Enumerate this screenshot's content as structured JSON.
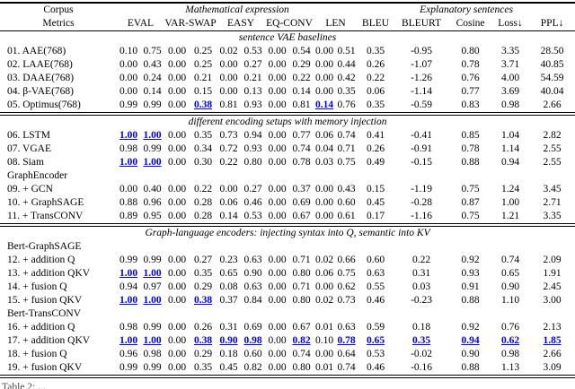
{
  "table": {
    "header": {
      "corpus_label": "Corpus",
      "metrics_label": "Metrics",
      "group_math": "Mathematical expression",
      "group_expl": "Explanatory sentences",
      "math_metrics": [
        "EVAL",
        "VAR-SWAP",
        "EASY",
        "EQ-CONV",
        "LEN"
      ],
      "expl_metrics": [
        "BLEU",
        "BLEURT",
        "Cosine",
        "Loss↓",
        "PPL↓"
      ]
    },
    "highlight_color": "#0000EE",
    "sections": [
      {
        "title": "sentence VAE baselines",
        "rows": [
          {
            "label": "01. AAE(768)",
            "values": [
              "0.10",
              "0.75",
              "0.00",
              "0.25",
              "0.02",
              "0.53",
              "0.00",
              "0.54",
              "0.00",
              "0.51",
              "0.35",
              "-0.95",
              "0.80",
              "3.35",
              "28.50"
            ],
            "highlight": []
          },
          {
            "label": "02. LAAE(768)",
            "values": [
              "0.00",
              "0.43",
              "0.00",
              "0.25",
              "0.00",
              "0.27",
              "0.00",
              "0.29",
              "0.00",
              "0.44",
              "0.26",
              "-1.07",
              "0.78",
              "3.71",
              "40.85"
            ],
            "highlight": []
          },
          {
            "label": "03. DAAE(768)",
            "values": [
              "0.00",
              "0.24",
              "0.00",
              "0.21",
              "0.00",
              "0.21",
              "0.00",
              "0.22",
              "0.00",
              "0.42",
              "0.22",
              "-1.26",
              "0.76",
              "4.00",
              "54.59"
            ],
            "highlight": []
          },
          {
            "label": "04. β-VAE(768)",
            "values": [
              "0.00",
              "0.14",
              "0.00",
              "0.15",
              "0.00",
              "0.13",
              "0.00",
              "0.14",
              "0.00",
              "0.35",
              "0.06",
              "-1.14",
              "0.77",
              "3.69",
              "40.04"
            ],
            "highlight": []
          },
          {
            "label": "05. Optimus(768)",
            "values": [
              "0.99",
              "0.99",
              "0.00",
              "0.38",
              "0.81",
              "0.93",
              "0.00",
              "0.81",
              "0.14",
              "0.76",
              "0.35",
              "-0.59",
              "0.83",
              "0.98",
              "2.66"
            ],
            "highlight": [
              3,
              8
            ]
          }
        ]
      },
      {
        "title": "different encoding setups with memory injection",
        "rows": [
          {
            "label": "06. LSTM",
            "values": [
              "1.00",
              "1.00",
              "0.00",
              "0.35",
              "0.73",
              "0.94",
              "0.00",
              "0.77",
              "0.06",
              "0.74",
              "0.41",
              "-0.41",
              "0.85",
              "1.04",
              "2.82"
            ],
            "highlight": [
              0,
              1
            ]
          },
          {
            "label": "07. VGAE",
            "values": [
              "0.98",
              "0.99",
              "0.00",
              "0.34",
              "0.72",
              "0.93",
              "0.00",
              "0.74",
              "0.04",
              "0.71",
              "0.26",
              "-0.91",
              "0.78",
              "1.14",
              "2.55"
            ],
            "highlight": []
          },
          {
            "label": "08. Siam",
            "values": [
              "1.00",
              "1.00",
              "0.00",
              "0.30",
              "0.22",
              "0.80",
              "0.00",
              "0.78",
              "0.03",
              "0.75",
              "0.49",
              "-0.15",
              "0.88",
              "0.94",
              "2.55"
            ],
            "highlight": [
              0,
              1
            ]
          },
          {
            "subheading": "GraphEncoder"
          },
          {
            "label": "09. + GCN",
            "values": [
              "0.00",
              "0.40",
              "0.00",
              "0.22",
              "0.00",
              "0.27",
              "0.00",
              "0.37",
              "0.00",
              "0.43",
              "0.15",
              "-1.19",
              "0.75",
              "1.24",
              "3.45"
            ],
            "highlight": []
          },
          {
            "label": "10. + GraphSAGE",
            "values": [
              "0.88",
              "0.96",
              "0.00",
              "0.28",
              "0.06",
              "0.46",
              "0.00",
              "0.69",
              "0.00",
              "0.60",
              "0.45",
              "-0.28",
              "0.87",
              "1.00",
              "2.71"
            ],
            "highlight": []
          },
          {
            "label": "11. + TransCONV",
            "values": [
              "0.89",
              "0.95",
              "0.00",
              "0.28",
              "0.14",
              "0.53",
              "0.00",
              "0.67",
              "0.00",
              "0.61",
              "0.17",
              "-1.16",
              "0.75",
              "1.21",
              "3.35"
            ],
            "highlight": []
          }
        ]
      },
      {
        "title": "Graph-language encoders: injecting syntax into Q, semantic into KV",
        "rows": [
          {
            "subheading": "Bert-GraphSAGE"
          },
          {
            "label": "12. + addition Q",
            "values": [
              "0.99",
              "0.99",
              "0.00",
              "0.27",
              "0.23",
              "0.63",
              "0.00",
              "0.71",
              "0.02",
              "0.66",
              "0.60",
              "0.22",
              "0.92",
              "0.74",
              "2.09"
            ],
            "highlight": []
          },
          {
            "label": "13. + addition QKV",
            "values": [
              "1.00",
              "1.00",
              "0.00",
              "0.35",
              "0.65",
              "0.90",
              "0.00",
              "0.80",
              "0.06",
              "0.75",
              "0.63",
              "0.31",
              "0.93",
              "0.65",
              "1.91"
            ],
            "highlight": [
              0,
              1
            ]
          },
          {
            "label": "14. + fusion Q",
            "values": [
              "0.94",
              "0.97",
              "0.00",
              "0.29",
              "0.08",
              "0.63",
              "0.00",
              "0.71",
              "0.00",
              "0.62",
              "0.55",
              "0.03",
              "0.91",
              "0.90",
              "2.45"
            ],
            "highlight": []
          },
          {
            "label": "15. + fusion QKV",
            "values": [
              "1.00",
              "1.00",
              "0.00",
              "0.38",
              "0.37",
              "0.84",
              "0.00",
              "0.80",
              "0.02",
              "0.73",
              "0.46",
              "-0.23",
              "0.88",
              "1.10",
              "3.00"
            ],
            "highlight": [
              0,
              1,
              3
            ]
          },
          {
            "subheading": "Bert-TransCONV"
          },
          {
            "label": "16. + addition Q",
            "values": [
              "0.98",
              "0.99",
              "0.00",
              "0.26",
              "0.31",
              "0.69",
              "0.00",
              "0.67",
              "0.01",
              "0.63",
              "0.59",
              "0.18",
              "0.92",
              "0.76",
              "2.13"
            ],
            "highlight": []
          },
          {
            "label": "17. + addition QKV",
            "values": [
              "1.00",
              "1.00",
              "0.00",
              "0.38",
              "0.90",
              "0.98",
              "0.00",
              "0.82",
              "0.10",
              "0.78",
              "0.65",
              "0.35",
              "0.94",
              "0.62",
              "1.85"
            ],
            "highlight": [
              0,
              1,
              3,
              4,
              5,
              7,
              9,
              10,
              11,
              12,
              13,
              14
            ]
          },
          {
            "label": "18. + fusion Q",
            "values": [
              "0.96",
              "0.98",
              "0.00",
              "0.29",
              "0.18",
              "0.60",
              "0.00",
              "0.74",
              "0.00",
              "0.64",
              "0.53",
              "-0.02",
              "0.90",
              "0.98",
              "2.66"
            ],
            "highlight": []
          },
          {
            "label": "19. + fusion QKV",
            "values": [
              "0.99",
              "0.99",
              "0.00",
              "0.35",
              "0.45",
              "0.82",
              "0.00",
              "0.80",
              "0.01",
              "0.74",
              "0.46",
              "-0.16",
              "0.88",
              "1.13",
              "3.09"
            ],
            "highlight": []
          }
        ]
      }
    ],
    "caption_partial": "Table 2: ..."
  }
}
